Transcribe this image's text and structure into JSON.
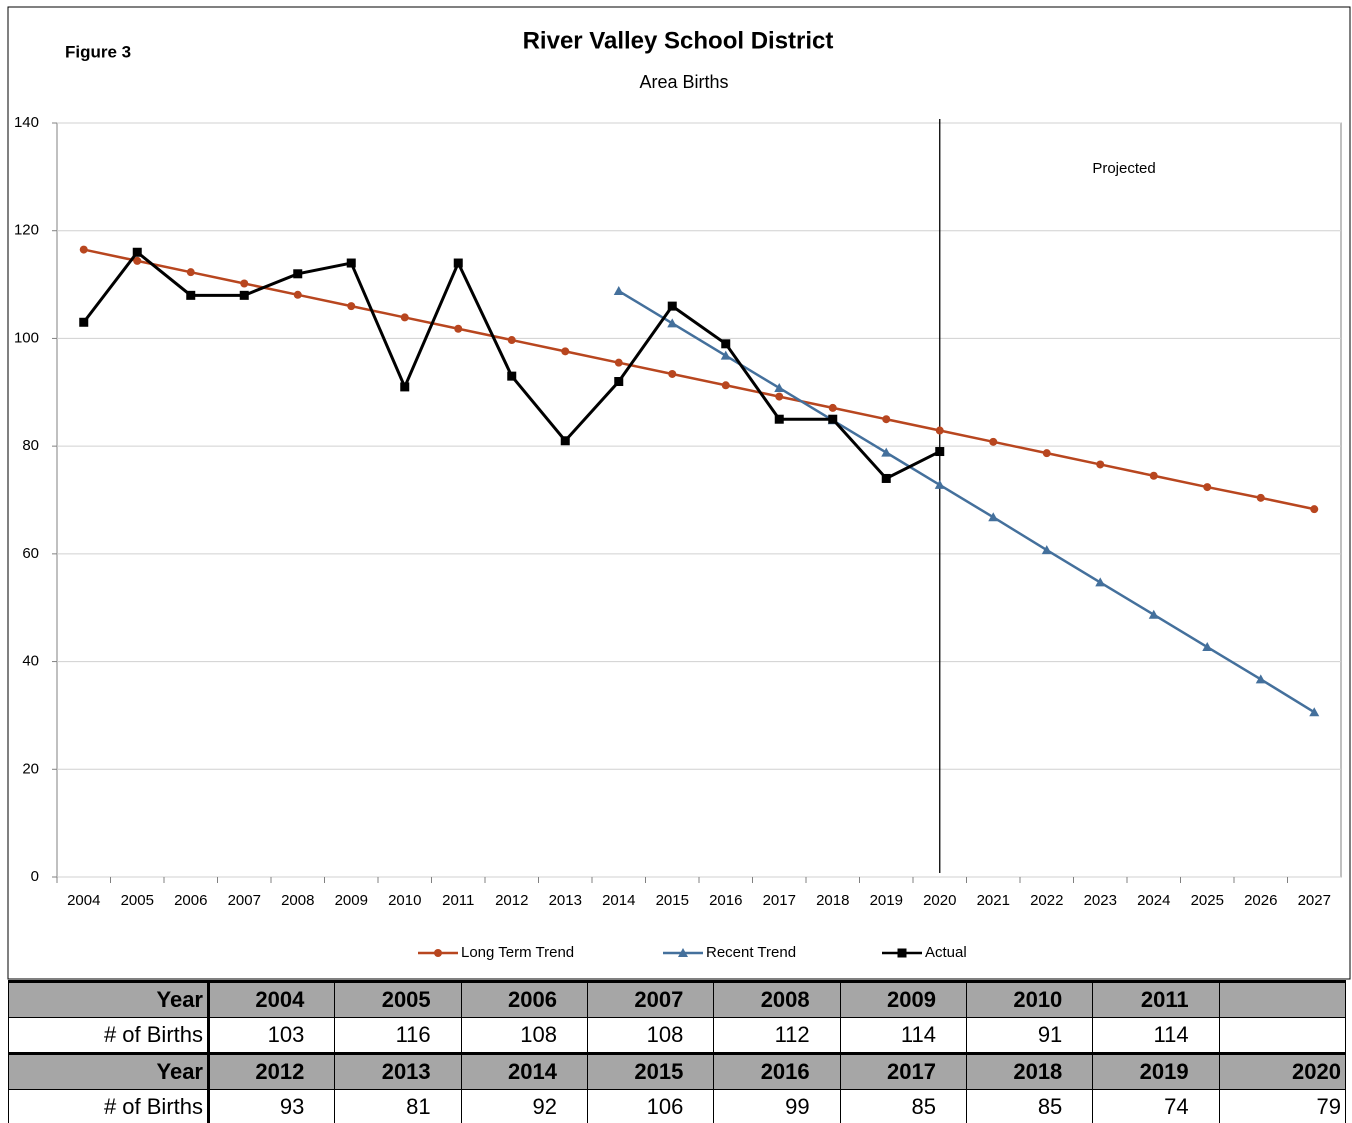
{
  "figure_label": "Figure 3",
  "chart_data": {
    "type": "line",
    "title": "River Valley School District",
    "subtitle": "Area Births",
    "annotation": "Projected",
    "projected_from": "2020",
    "categories": [
      "2004",
      "2005",
      "2006",
      "2007",
      "2008",
      "2009",
      "2010",
      "2011",
      "2012",
      "2013",
      "2014",
      "2015",
      "2016",
      "2017",
      "2018",
      "2019",
      "2020",
      "2021",
      "2022",
      "2023",
      "2024",
      "2025",
      "2026",
      "2027"
    ],
    "series": [
      {
        "name": "Long Term Trend",
        "color": "#b8461f",
        "marker": "circle",
        "values": [
          116.5,
          114.4,
          112.3,
          110.2,
          108.1,
          106.0,
          103.9,
          101.8,
          99.7,
          97.6,
          95.5,
          93.4,
          91.3,
          89.2,
          87.1,
          85.0,
          82.9,
          80.8,
          78.7,
          76.6,
          74.5,
          72.4,
          70.4,
          68.3
        ]
      },
      {
        "name": "Recent Trend",
        "color": "#44709c",
        "marker": "triangle",
        "values": [
          null,
          null,
          null,
          null,
          null,
          null,
          null,
          null,
          null,
          null,
          108.8,
          102.8,
          96.8,
          90.8,
          84.8,
          78.8,
          72.8,
          66.8,
          60.7,
          54.7,
          48.7,
          42.7,
          36.7,
          30.6
        ]
      },
      {
        "name": "Actual",
        "color": "#000000",
        "marker": "square",
        "values": [
          103,
          116,
          108,
          108,
          112,
          114,
          91,
          114,
          93,
          81,
          92,
          106,
          99,
          85,
          85,
          74,
          79,
          null,
          null,
          null,
          null,
          null,
          null,
          null
        ]
      }
    ],
    "ylim": [
      0,
      140
    ],
    "yticks": [
      0,
      20,
      40,
      60,
      80,
      100,
      120,
      140
    ],
    "grid": true,
    "legend": "bottom"
  },
  "table": {
    "blocks": [
      {
        "header": "Year",
        "years": [
          2004,
          2005,
          2006,
          2007,
          2008,
          2009,
          2010,
          2011
        ],
        "label": "# of Births",
        "births": [
          103,
          116,
          108,
          108,
          112,
          114,
          91,
          114
        ]
      },
      {
        "header": "Year",
        "years": [
          2012,
          2013,
          2014,
          2015,
          2016,
          2017,
          2018,
          2019,
          2020
        ],
        "label": "# of Births",
        "births": [
          93,
          81,
          92,
          106,
          99,
          85,
          85,
          74,
          79
        ]
      }
    ]
  }
}
